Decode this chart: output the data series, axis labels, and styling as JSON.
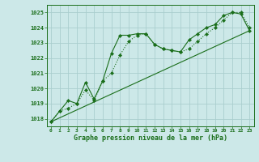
{
  "title": "Graphe pression niveau de la mer (hPa)",
  "background_color": "#cce8e8",
  "grid_color": "#aacece",
  "line_color": "#1a6e1a",
  "xlim": [
    -0.5,
    23.5
  ],
  "ylim": [
    1017.5,
    1025.5
  ],
  "yticks": [
    1018,
    1019,
    1020,
    1021,
    1022,
    1023,
    1024,
    1025
  ],
  "xticks": [
    0,
    1,
    2,
    3,
    4,
    5,
    6,
    7,
    8,
    9,
    10,
    11,
    12,
    13,
    14,
    15,
    16,
    17,
    18,
    19,
    20,
    21,
    22,
    23
  ],
  "series1_x": [
    0,
    1,
    2,
    3,
    4,
    5,
    6,
    7,
    8,
    9,
    10,
    11,
    12,
    13,
    14,
    15,
    16,
    17,
    18,
    19,
    20,
    21,
    22,
    23
  ],
  "series1_y": [
    1017.8,
    1018.5,
    1018.7,
    1019.0,
    1019.9,
    1019.2,
    1020.5,
    1021.0,
    1022.2,
    1023.1,
    1023.5,
    1023.6,
    1022.9,
    1022.6,
    1022.5,
    1022.4,
    1022.6,
    1023.1,
    1023.6,
    1024.0,
    1024.5,
    1025.0,
    1025.0,
    1024.0
  ],
  "series2_x": [
    0,
    1,
    2,
    3,
    4,
    5,
    6,
    7,
    8,
    9,
    10,
    11,
    12,
    13,
    14,
    15,
    16,
    17,
    18,
    19,
    20,
    21,
    22,
    23
  ],
  "series2_y": [
    1017.8,
    1018.5,
    1019.2,
    1019.0,
    1020.4,
    1019.3,
    1020.5,
    1022.3,
    1023.5,
    1023.5,
    1023.6,
    1023.6,
    1022.9,
    1022.6,
    1022.5,
    1022.4,
    1023.2,
    1023.6,
    1024.0,
    1024.2,
    1024.8,
    1025.0,
    1024.9,
    1023.8
  ],
  "series3_x": [
    0,
    23
  ],
  "series3_y": [
    1017.8,
    1023.8
  ]
}
